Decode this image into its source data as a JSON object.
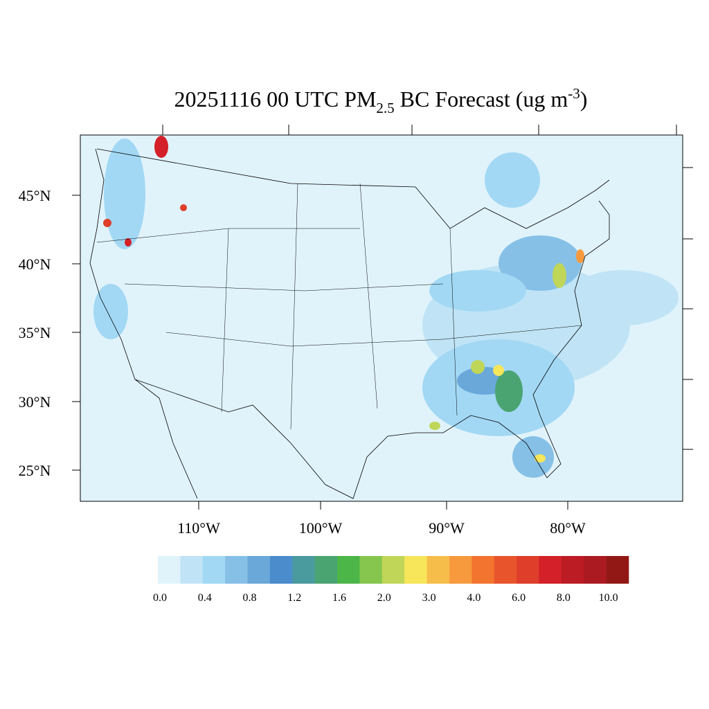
{
  "map": {
    "title": {
      "main": "20251116 00 UTC PM",
      "sub": "2.5",
      "middle": " BC Forecast (ug m",
      "sup": "-3",
      "end": ")"
    },
    "lat_labels": [
      "45°N",
      "40°N",
      "35°N",
      "30°N",
      "25°N"
    ],
    "lon_labels": [
      "110°W",
      "100°W",
      "90°W",
      "80°W"
    ],
    "colorbar": {
      "colors": [
        "#e0f3fb",
        "#c0e4f6",
        "#a2d8f4",
        "#86c0e6",
        "#6aa8da",
        "#4a8ccc",
        "#4a9b9e",
        "#4aa472",
        "#4cb648",
        "#86c64e",
        "#c0d658",
        "#f7e55a",
        "#f7bd4a",
        "#f79a3e",
        "#f3742e",
        "#e8552c",
        "#de3e2a",
        "#d42028",
        "#bc1c24",
        "#aa1a20",
        "#921816"
      ],
      "labels": [
        "0.0",
        "0.4",
        "0.8",
        "1.2",
        "1.6",
        "2.0",
        "3.0",
        "4.0",
        "6.0",
        "8.0",
        "10.0"
      ]
    }
  }
}
